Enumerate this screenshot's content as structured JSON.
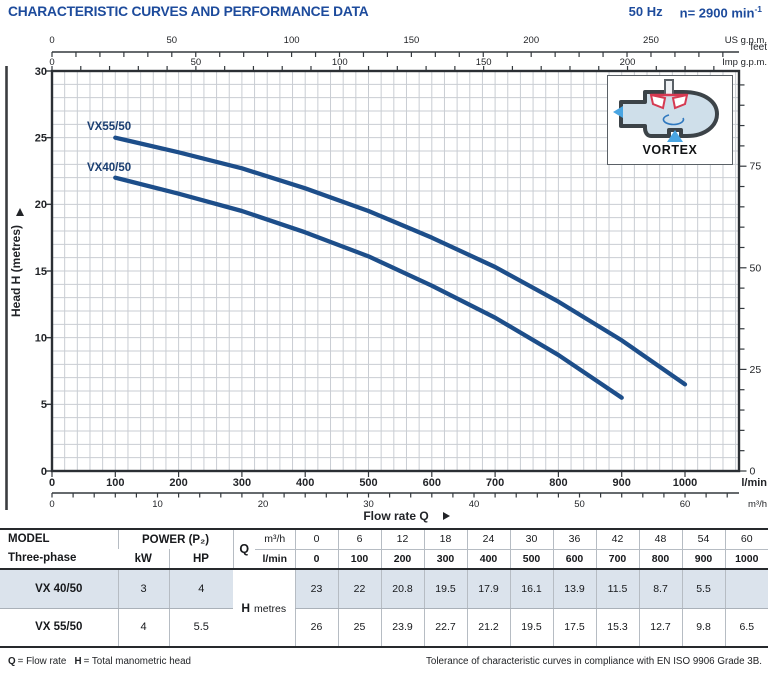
{
  "header": {
    "title": "CHARACTERISTIC CURVES AND PERFORMANCE DATA",
    "frequency": "50 Hz",
    "speed_prefix": "n= 2900 min",
    "speed_sup": "-1"
  },
  "chart_data": {
    "type": "line",
    "title": "",
    "xlabel": "Flow rate Q",
    "ylabel": "Head H (metres)",
    "x_primary_unit": "l/min",
    "xlim_lpm": [
      0,
      1085
    ],
    "ylim_m": [
      0,
      30
    ],
    "grid": {
      "on": true,
      "x_minor_lpm": 20,
      "y_minor_m": 1
    },
    "x_axes": [
      {
        "unit": "US g.p.m.",
        "lpm_per_unit": 3.785,
        "tick_step": 10,
        "label_step": 50,
        "labels": [
          0,
          50,
          100,
          150,
          200,
          250
        ]
      },
      {
        "unit": "Imp g.p.m.",
        "lpm_per_unit": 4.546,
        "tick_step": 10,
        "label_step": 50,
        "labels": [
          0,
          50,
          100,
          150,
          200
        ]
      },
      {
        "unit": "l/min",
        "lpm_per_unit": 1,
        "tick_step": 100,
        "label_step": 100,
        "labels": [
          0,
          100,
          200,
          300,
          400,
          500,
          600,
          700,
          800,
          900,
          1000
        ]
      },
      {
        "unit": "m³/h",
        "lpm_per_unit": 16.667,
        "tick_step": 2,
        "label_step": 10,
        "labels": [
          0,
          10,
          20,
          30,
          40,
          50,
          60
        ]
      }
    ],
    "y_axes": [
      {
        "unit": "metres",
        "m_per_unit": 1,
        "tick_step": 5,
        "label_step": 5,
        "labels": [
          0,
          5,
          10,
          15,
          20,
          25,
          30
        ]
      },
      {
        "unit": "feet",
        "m_per_unit": 0.3048,
        "tick_step": 5,
        "label_step": 25,
        "labels": [
          0,
          25,
          50,
          75
        ]
      }
    ],
    "series": [
      {
        "name": "VX55/50",
        "x_lpm": [
          100,
          200,
          300,
          400,
          500,
          600,
          700,
          800,
          900,
          1000
        ],
        "y_m": [
          25,
          23.9,
          22.7,
          21.2,
          19.5,
          17.5,
          15.3,
          12.7,
          9.8,
          6.5
        ]
      },
      {
        "name": "VX40/50",
        "x_lpm": [
          100,
          200,
          300,
          400,
          500,
          600,
          700,
          800,
          900
        ],
        "y_m": [
          22,
          20.8,
          19.5,
          17.9,
          16.1,
          13.9,
          11.5,
          8.7,
          5.5
        ]
      }
    ],
    "colors": {
      "curve": "#1d4e8a",
      "curve_label": "#1b3f72",
      "grid": "#c9cdd3",
      "axis": "#2b2f34"
    }
  },
  "inset": {
    "label": "VORTEX"
  },
  "table": {
    "model_header": "MODEL",
    "model_subheader": "Three-phase",
    "power_header": "POWER (P₂)",
    "kw_label": "kW",
    "hp_label": "HP",
    "q_label": "Q",
    "q_units": [
      "m³/h",
      "l/min"
    ],
    "q_values_m3h": [
      "0",
      "6",
      "12",
      "18",
      "24",
      "30",
      "36",
      "42",
      "48",
      "54",
      "60"
    ],
    "q_values_lpm": [
      "0",
      "100",
      "200",
      "300",
      "400",
      "500",
      "600",
      "700",
      "800",
      "900",
      "1000"
    ],
    "h_label": "H",
    "h_unit": "metres",
    "rows": [
      {
        "model": "VX 40/50",
        "kw": "3",
        "hp": "4",
        "h": [
          "23",
          "22",
          "20.8",
          "19.5",
          "17.9",
          "16.1",
          "13.9",
          "11.5",
          "8.7",
          "5.5",
          ""
        ]
      },
      {
        "model": "VX 55/50",
        "kw": "4",
        "hp": "5.5",
        "h": [
          "26",
          "25",
          "23.9",
          "22.7",
          "21.2",
          "19.5",
          "17.5",
          "15.3",
          "12.7",
          "9.8",
          "6.5"
        ]
      }
    ]
  },
  "footer": {
    "q_term": "Q",
    "q_def": "= Flow rate",
    "h_term": "H",
    "h_def": "= Total manometric head",
    "tolerance": "Tolerance of characteristic curves in compliance with EN ISO 9906 Grade 3B."
  }
}
